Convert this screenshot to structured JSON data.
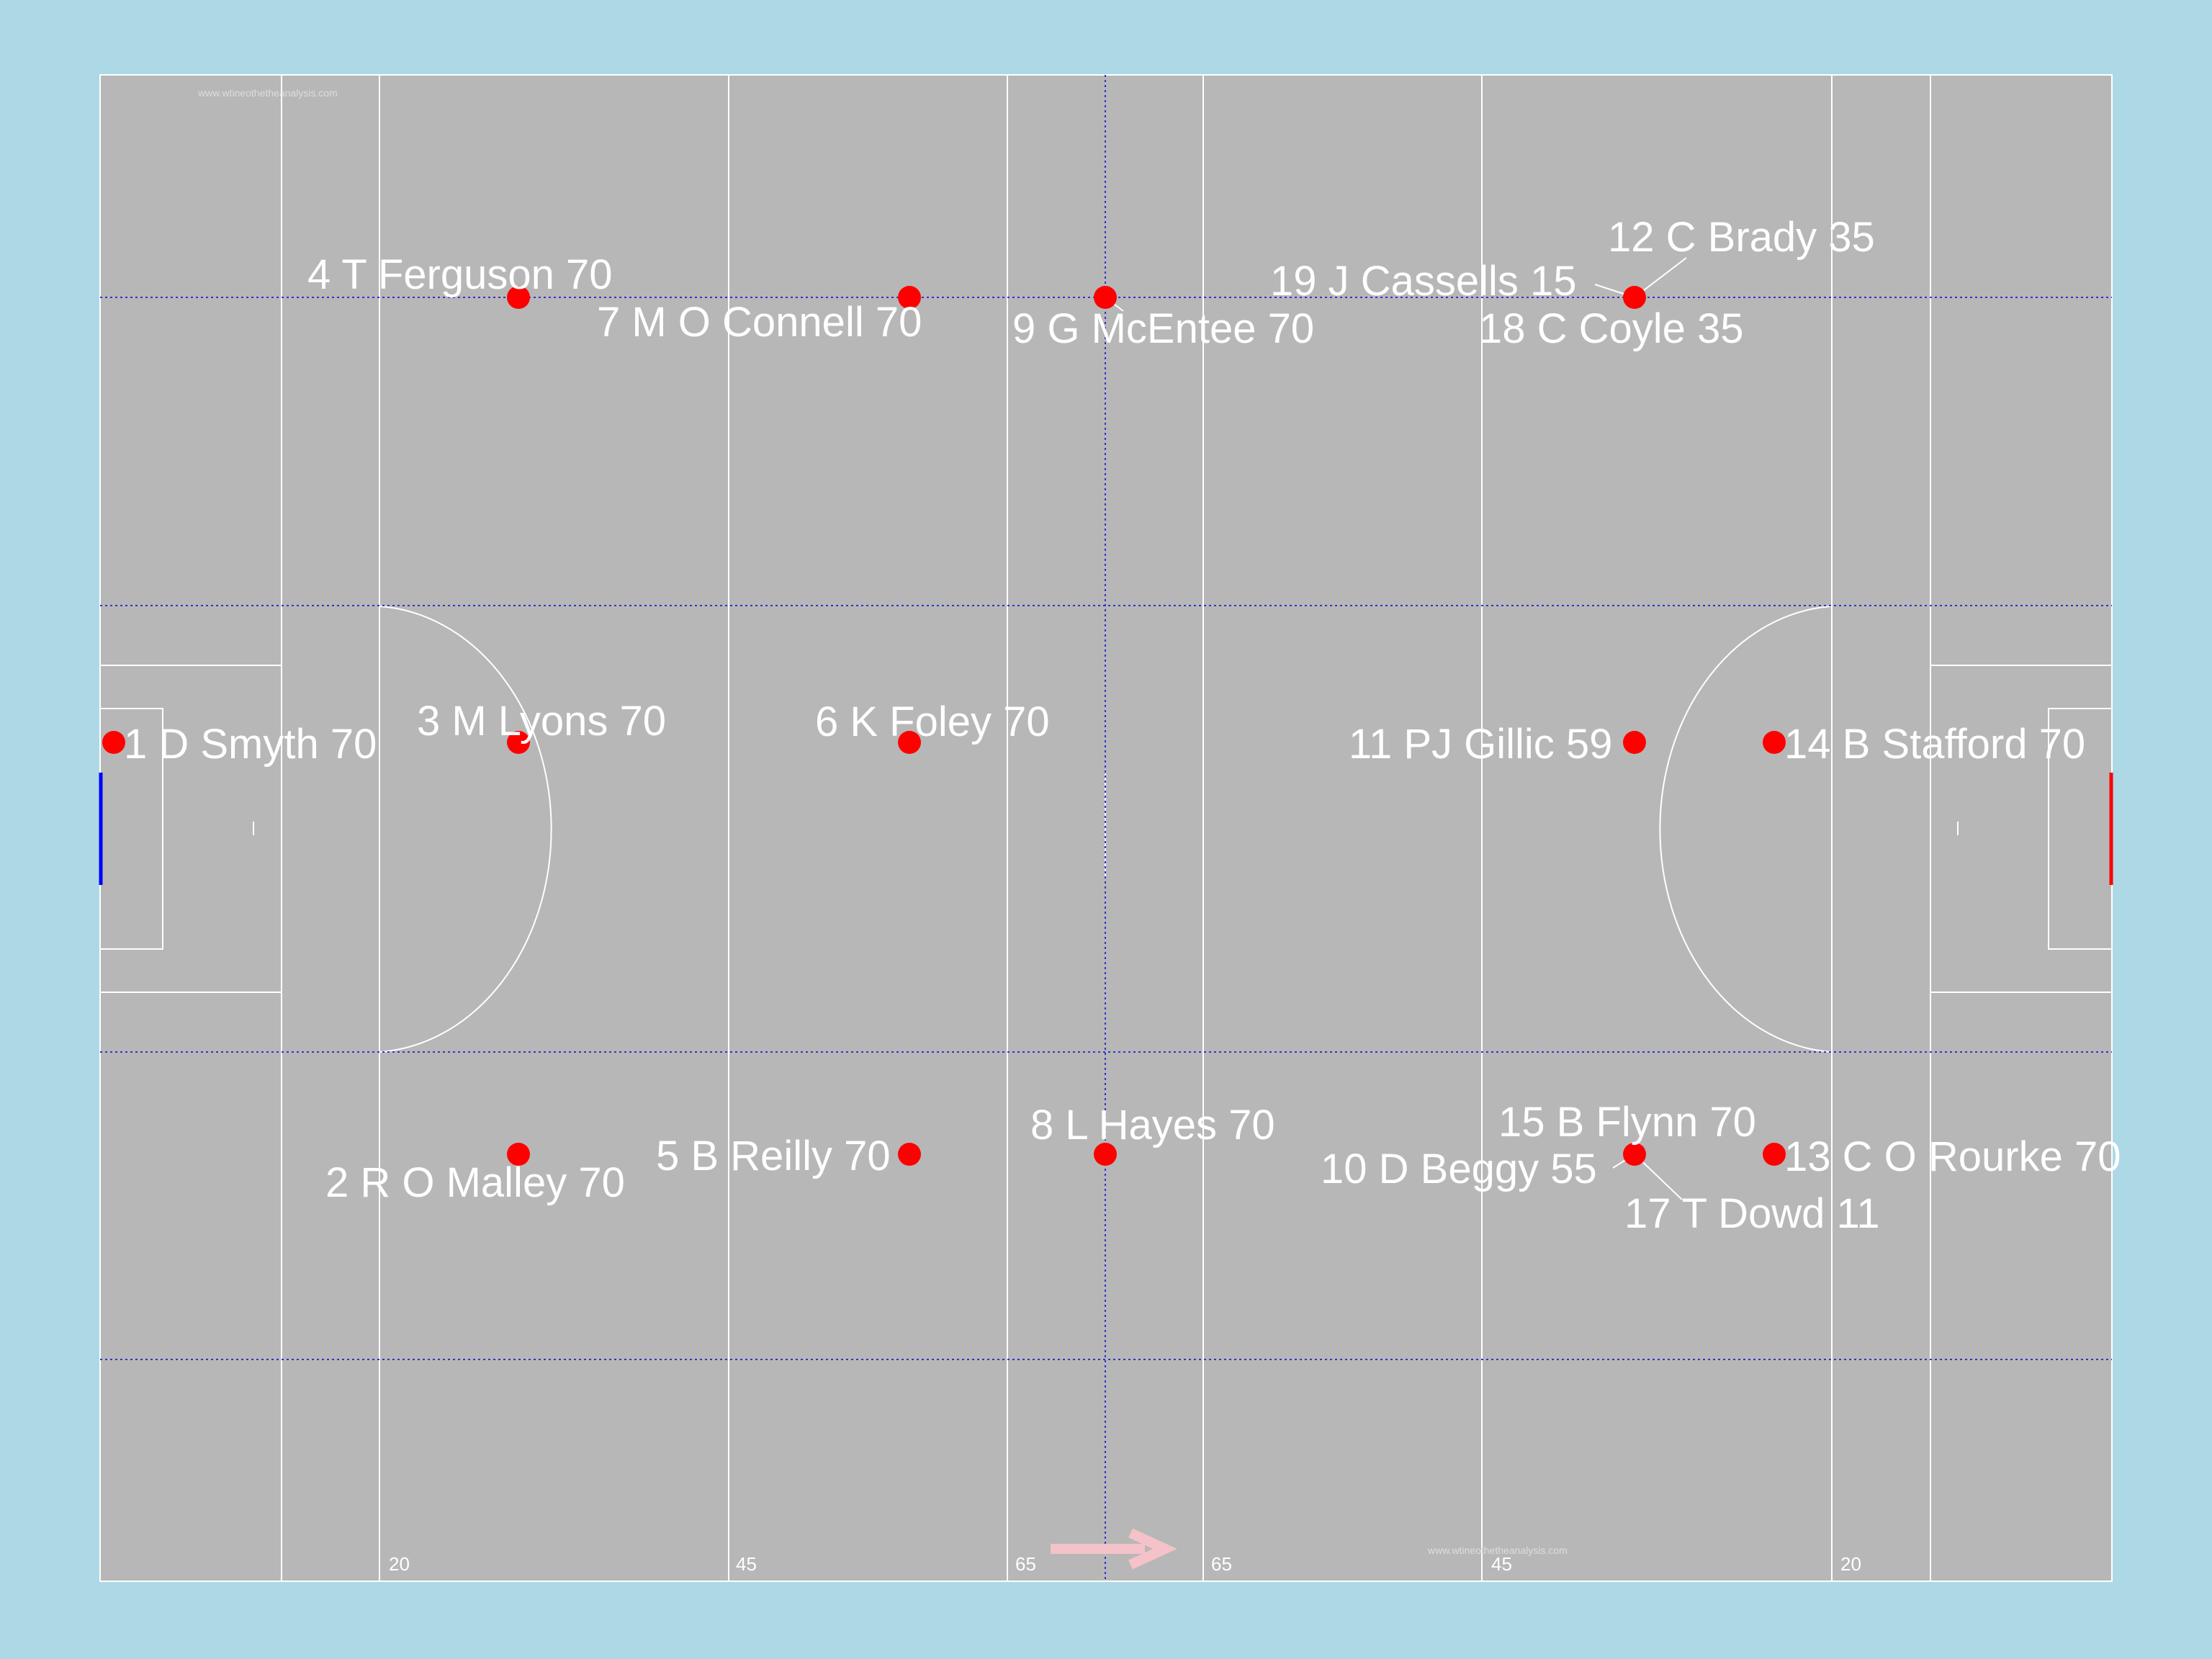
{
  "colors": {
    "background": "#add8e6",
    "pitch": "#b7b7b7",
    "lines": "#ffffff",
    "grid": "#3333cc",
    "player": "#ff0000",
    "left_goal": "#0000ff",
    "right_goal": "#ff0000",
    "direction_arrow": "#f4c2c8"
  },
  "pitch": {
    "watermark": "www.wtineothetheanalysis.com",
    "distance_markers": [
      "20",
      "45",
      "65",
      "65",
      "45",
      "20"
    ],
    "direction_icon": "right-arrow-icon"
  },
  "players": [
    {
      "label": "1 D Smyth 70",
      "number": 1,
      "name": "D Smyth",
      "minutes": 70
    },
    {
      "label": "2 R O Malley 70",
      "number": 2,
      "name": "R O Malley",
      "minutes": 70
    },
    {
      "label": "3 M Lyons 70",
      "number": 3,
      "name": "M Lyons",
      "minutes": 70
    },
    {
      "label": "4 T Ferguson 70",
      "number": 4,
      "name": "T Ferguson",
      "minutes": 70
    },
    {
      "label": "5 B Reilly 70",
      "number": 5,
      "name": "B Reilly",
      "minutes": 70
    },
    {
      "label": "6 K Foley 70",
      "number": 6,
      "name": "K Foley",
      "minutes": 70
    },
    {
      "label": "7 M O Connell 70",
      "number": 7,
      "name": "M O Connell",
      "minutes": 70
    },
    {
      "label": "8 L Hayes 70",
      "number": 8,
      "name": "L Hayes",
      "minutes": 70
    },
    {
      "label": "9 G McEntee 70",
      "number": 9,
      "name": "G McEntee",
      "minutes": 70
    },
    {
      "label": "10 D Beggy 55",
      "number": 10,
      "name": "D Beggy",
      "minutes": 55
    },
    {
      "label": "11 PJ Gillic 59",
      "number": 11,
      "name": "PJ Gillic",
      "minutes": 59
    },
    {
      "label": "12 C Brady 35",
      "number": 12,
      "name": "C Brady",
      "minutes": 35
    },
    {
      "label": "13 C O Rourke 70",
      "number": 13,
      "name": "C O Rourke",
      "minutes": 70
    },
    {
      "label": "14 B Stafford 70",
      "number": 14,
      "name": "B Stafford",
      "minutes": 70
    },
    {
      "label": "15 B Flynn 70",
      "number": 15,
      "name": "B Flynn",
      "minutes": 70
    },
    {
      "label": "17 T Dowd 11",
      "number": 17,
      "name": "T Dowd",
      "minutes": 11
    },
    {
      "label": "18 C Coyle 35",
      "number": 18,
      "name": "C Coyle",
      "minutes": 35
    },
    {
      "label": "19 J Cassells 15",
      "number": 19,
      "name": "J Cassells",
      "minutes": 15
    }
  ]
}
